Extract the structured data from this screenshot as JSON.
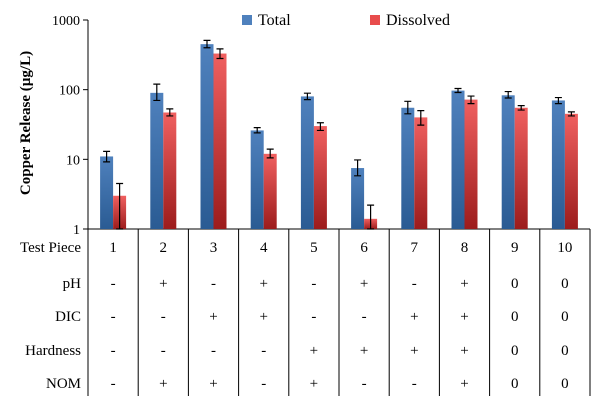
{
  "chart_data": {
    "type": "bar",
    "title": "",
    "xlabel": "",
    "ylabel": "Copper Release (µg/L)",
    "y_scale": "log",
    "ylim": [
      1,
      1000
    ],
    "y_ticks": [
      "1",
      "10",
      "100",
      "1000"
    ],
    "grid": false,
    "legend_position": "top",
    "categories": [
      "1",
      "2",
      "3",
      "4",
      "5",
      "6",
      "7",
      "8",
      "9",
      "10"
    ],
    "series": [
      {
        "name": "Total",
        "color": "#4f81bd",
        "values": [
          11,
          90,
          450,
          26,
          80,
          7.5,
          55,
          97,
          83,
          70
        ],
        "err_low": [
          9.2,
          70,
          400,
          24,
          72,
          5.8,
          45,
          91,
          76,
          63
        ],
        "err_high": [
          13,
          120,
          510,
          28.5,
          89,
          9.8,
          68,
          104,
          94,
          77
        ]
      },
      {
        "name": "Dissolved",
        "color": "#e84c4c",
        "values": [
          3,
          47,
          330,
          12,
          30,
          1.4,
          40,
          72,
          55,
          45
        ],
        "err_low": [
          1,
          42,
          280,
          10.5,
          26,
          1,
          31,
          63,
          51,
          42
        ],
        "err_high": [
          4.5,
          53,
          385,
          14,
          33.5,
          2.2,
          50,
          81,
          59,
          48
        ]
      }
    ],
    "table": {
      "rows": [
        {
          "label": "Test Piece",
          "values": [
            "1",
            "2",
            "3",
            "4",
            "5",
            "6",
            "7",
            "8",
            "9",
            "10"
          ]
        },
        {
          "label": "pH",
          "values": [
            "-",
            "+",
            "-",
            "+",
            "-",
            "+",
            "-",
            "+",
            "0",
            "0"
          ]
        },
        {
          "label": "DIC",
          "values": [
            "-",
            "-",
            "+",
            "+",
            "-",
            "-",
            "+",
            "+",
            "0",
            "0"
          ]
        },
        {
          "label": "Hardness",
          "values": [
            "-",
            "-",
            "-",
            "-",
            "+",
            "+",
            "+",
            "+",
            "0",
            "0"
          ]
        },
        {
          "label": "NOM",
          "values": [
            "-",
            "+",
            "+",
            "-",
            "+",
            "-",
            "-",
            "+",
            "0",
            "0"
          ]
        }
      ]
    }
  }
}
